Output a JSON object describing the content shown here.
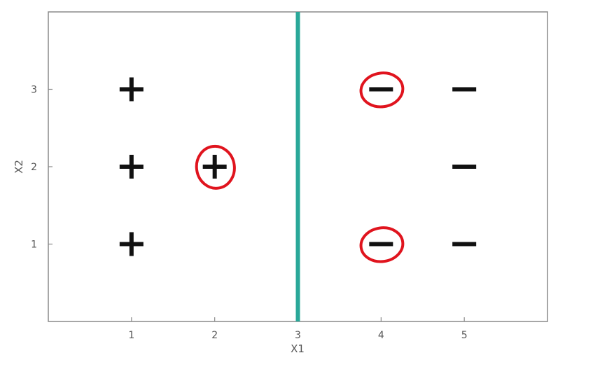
{
  "chart_data": {
    "type": "scatter",
    "xlabel": "X1",
    "ylabel": "X2",
    "xlim": [
      0,
      6
    ],
    "ylim": [
      0,
      4
    ],
    "x_ticks": [
      "1",
      "2",
      "3",
      "4",
      "5"
    ],
    "y_ticks": [
      "1",
      "2",
      "3"
    ],
    "grid": false,
    "points": [
      {
        "x": 1,
        "y": 3,
        "label": "+",
        "circled": false
      },
      {
        "x": 1,
        "y": 2,
        "label": "+",
        "circled": false
      },
      {
        "x": 1,
        "y": 1,
        "label": "+",
        "circled": false
      },
      {
        "x": 2,
        "y": 2,
        "label": "+",
        "circled": true
      },
      {
        "x": 4,
        "y": 3,
        "label": "-",
        "circled": true
      },
      {
        "x": 4,
        "y": 1,
        "label": "-",
        "circled": true
      },
      {
        "x": 5,
        "y": 3,
        "label": "-",
        "circled": false
      },
      {
        "x": 5,
        "y": 2,
        "label": "-",
        "circled": false
      },
      {
        "x": 5,
        "y": 1,
        "label": "-",
        "circled": false
      }
    ],
    "decision_boundary": {
      "x": 3
    },
    "colors": {
      "boundary": "#2aa899",
      "marker": "#111111",
      "circle": "#e0141e",
      "frame": "#8a8a8a"
    }
  }
}
